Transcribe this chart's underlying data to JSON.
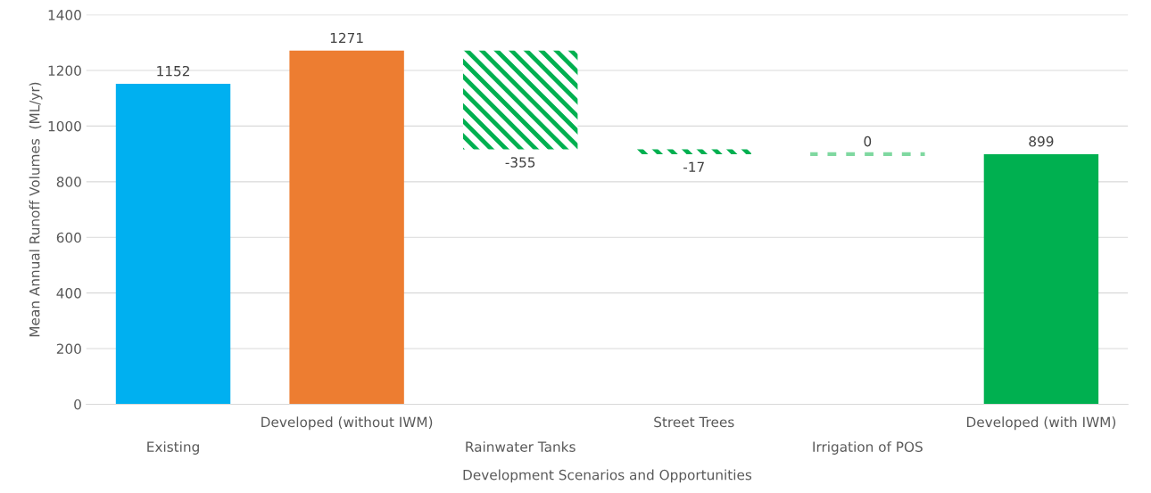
{
  "chart_data": {
    "type": "bar",
    "xlabel": "Development Scenarios and Opportunities",
    "ylabel": "Mean Annual Runoff Volumes  (ML/yr)",
    "categories": [
      "Existing",
      "Developed (without IWM)",
      "Rainwater Tanks",
      "Street Trees",
      "Irrigation of POS",
      "Developed (with IWM)"
    ],
    "values": [
      1152,
      1271,
      -355,
      -17,
      0,
      899
    ],
    "base": [
      null,
      null,
      1271,
      916,
      899,
      null
    ],
    "colors": [
      "#00b0f0",
      "#ed7d31",
      "#00b050",
      "#00b050",
      "#7fd8a0",
      "#00b050"
    ],
    "data_labels": true,
    "ylim": [
      0,
      1400
    ],
    "yticks": [
      0,
      200,
      400,
      600,
      800,
      1000,
      1200,
      1400
    ],
    "grid": "y",
    "legend": false
  }
}
